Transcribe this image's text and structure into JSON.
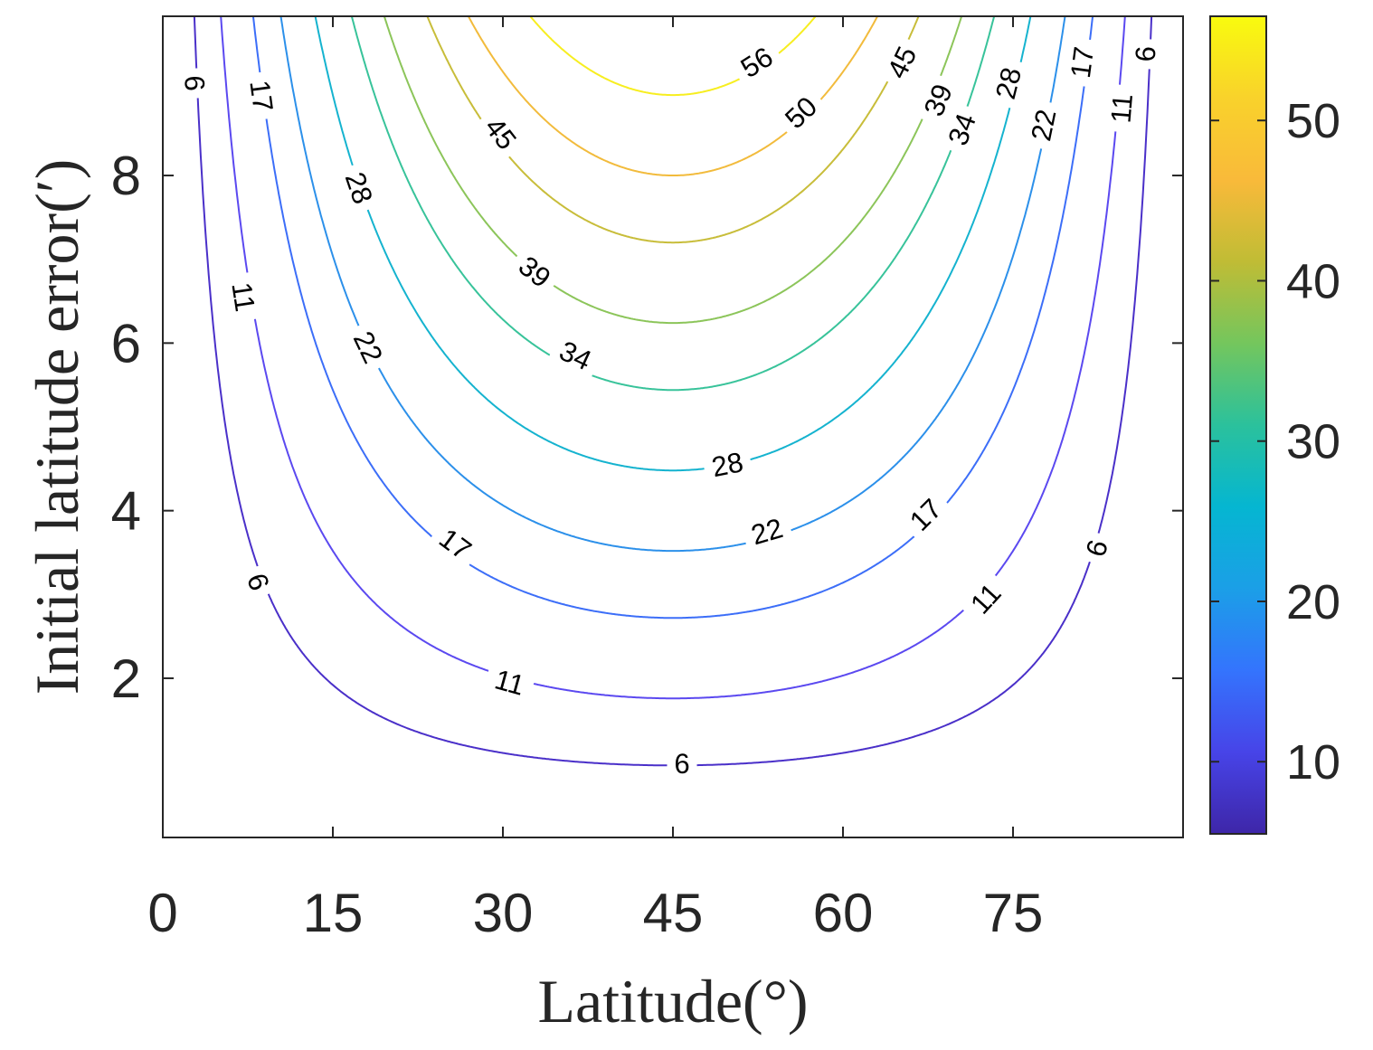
{
  "chart_data": {
    "type": "contour",
    "title": "",
    "xlabel": "Latitude(°)",
    "ylabel": "Initial latitude error(′)",
    "xlim": [
      0,
      90
    ],
    "ylim": [
      0.1,
      9.9
    ],
    "xticks": [
      0,
      15,
      30,
      45,
      60,
      75
    ],
    "xtick_labels": [
      "0",
      "15",
      "30",
      "45",
      "60",
      "75"
    ],
    "yticks": [
      2,
      4,
      6,
      8
    ],
    "ytick_labels": [
      "2",
      "4",
      "6",
      "8"
    ],
    "grid": false,
    "colormap": "parula",
    "colorbar": {
      "range": [
        5.5,
        56.5
      ],
      "ticks": [
        10,
        20,
        30,
        40,
        50
      ],
      "tick_labels": [
        "10",
        "20",
        "30",
        "40",
        "50"
      ],
      "colors": [
        "#3e26a8",
        "#4744e8",
        "#3474fd",
        "#1b9fe7",
        "#05b6d1",
        "#2bc19c",
        "#74c65d",
        "#c0bc35",
        "#f9ba3a",
        "#f9d22b",
        "#f9fb0e"
      ]
    },
    "function": "z = 6.25 * y * sin(2 * latitude)",
    "levels": [
      {
        "value": 6,
        "label": "6",
        "color": "#4a30c9"
      },
      {
        "value": 11,
        "label": "11",
        "color": "#5b49f0"
      },
      {
        "value": 17,
        "label": "17",
        "color": "#3c6ef8"
      },
      {
        "value": 22,
        "label": "22",
        "color": "#2c90ea"
      },
      {
        "value": 28,
        "label": "28",
        "color": "#15b3cf"
      },
      {
        "value": 34,
        "label": "34",
        "color": "#38c39a"
      },
      {
        "value": 39,
        "label": "39",
        "color": "#8cc55a"
      },
      {
        "value": 45,
        "label": "45",
        "color": "#c8bd3a"
      },
      {
        "value": 50,
        "label": "50",
        "color": "#f2bb3c"
      },
      {
        "value": 56,
        "label": "56",
        "color": "#f7ee20"
      }
    ],
    "contour_labels": [
      {
        "text": "6",
        "x": 45.8,
        "y": 0.98
      },
      {
        "text": "6",
        "x": 8.4,
        "y": 3.15
      },
      {
        "text": "6",
        "x": 82.4,
        "y": 3.55
      },
      {
        "text": "6",
        "x": 86.7,
        "y": 9.45
      },
      {
        "text": "6",
        "x": 2.8,
        "y": 9.1
      },
      {
        "text": "11",
        "x": 30.6,
        "y": 1.95
      },
      {
        "text": "11",
        "x": 72.6,
        "y": 2.95
      },
      {
        "text": "11",
        "x": 7.1,
        "y": 6.55
      },
      {
        "text": "11",
        "x": 84.6,
        "y": 8.8
      },
      {
        "text": "17",
        "x": 25.8,
        "y": 3.6
      },
      {
        "text": "17",
        "x": 67.3,
        "y": 3.95
      },
      {
        "text": "17",
        "x": 8.7,
        "y": 8.95
      },
      {
        "text": "17",
        "x": 81.1,
        "y": 9.35
      },
      {
        "text": "22",
        "x": 53.3,
        "y": 3.75
      },
      {
        "text": "22",
        "x": 18.1,
        "y": 5.95
      },
      {
        "text": "22",
        "x": 77.7,
        "y": 8.6
      },
      {
        "text": "28",
        "x": 49.8,
        "y": 4.55
      },
      {
        "text": "28",
        "x": 17.3,
        "y": 7.85
      },
      {
        "text": "28",
        "x": 74.6,
        "y": 9.1
      },
      {
        "text": "34",
        "x": 36.4,
        "y": 5.85
      },
      {
        "text": "34",
        "x": 70.5,
        "y": 8.55
      },
      {
        "text": "39",
        "x": 32.8,
        "y": 6.85
      },
      {
        "text": "39",
        "x": 68.4,
        "y": 8.9
      },
      {
        "text": "45",
        "x": 29.8,
        "y": 8.5
      },
      {
        "text": "45",
        "x": 65.2,
        "y": 9.35
      },
      {
        "text": "50",
        "x": 56.3,
        "y": 8.75
      },
      {
        "text": "56",
        "x": 52.4,
        "y": 9.35
      }
    ]
  }
}
